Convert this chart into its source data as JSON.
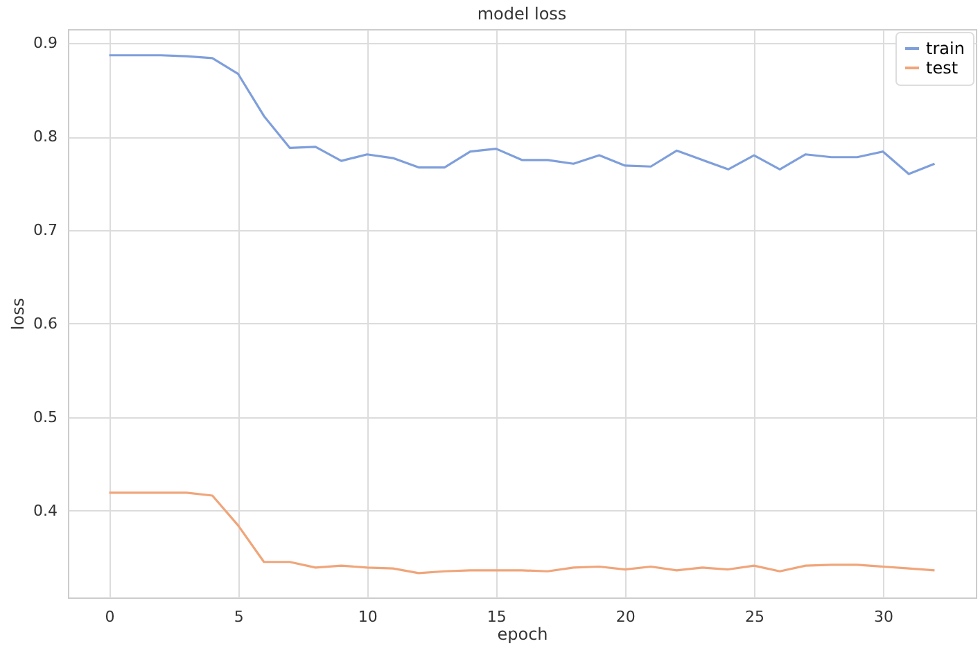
{
  "chart_data": {
    "type": "line",
    "title": "model loss",
    "xlabel": "epoch",
    "ylabel": "loss",
    "x": [
      0,
      1,
      2,
      3,
      4,
      5,
      6,
      7,
      8,
      9,
      10,
      11,
      12,
      13,
      14,
      15,
      16,
      17,
      18,
      19,
      20,
      21,
      22,
      23,
      24,
      25,
      26,
      27,
      28,
      29,
      30,
      31,
      32
    ],
    "series": [
      {
        "name": "train",
        "color": "#7f9fdb",
        "values": [
          0.887,
          0.887,
          0.887,
          0.886,
          0.884,
          0.867,
          0.822,
          0.788,
          0.789,
          0.774,
          0.781,
          0.777,
          0.767,
          0.767,
          0.784,
          0.787,
          0.775,
          0.775,
          0.771,
          0.78,
          0.769,
          0.768,
          0.785,
          0.775,
          0.765,
          0.78,
          0.765,
          0.781,
          0.778,
          0.778,
          0.784,
          0.76,
          0.771
        ]
      },
      {
        "name": "test",
        "color": "#f0a57a",
        "values": [
          0.419,
          0.419,
          0.419,
          0.419,
          0.416,
          0.384,
          0.345,
          0.345,
          0.339,
          0.341,
          0.339,
          0.338,
          0.333,
          0.335,
          0.336,
          0.336,
          0.336,
          0.335,
          0.339,
          0.34,
          0.337,
          0.34,
          0.336,
          0.339,
          0.337,
          0.341,
          0.335,
          0.341,
          0.342,
          0.342,
          0.34,
          0.338,
          0.336
        ]
      }
    ],
    "xlim": [
      -1.6,
      33.6
    ],
    "ylim": [
      0.307,
      0.915
    ],
    "xticks": [
      0,
      5,
      10,
      15,
      20,
      25,
      30
    ],
    "yticks": [
      0.4,
      0.5,
      0.6,
      0.7,
      0.8,
      0.9
    ],
    "grid": true,
    "legend": "top right"
  }
}
